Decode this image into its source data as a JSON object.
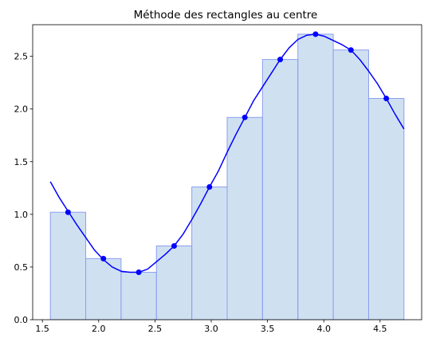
{
  "chart_data": {
    "type": "bar",
    "title": "Méthode des rectangles au centre",
    "xlabel": "",
    "ylabel": "",
    "xlim": [
      1.4137,
      4.8695
    ],
    "ylim": [
      0.0,
      2.8
    ],
    "x_ticks": [
      "1.5",
      "2.0",
      "2.5",
      "3.0",
      "3.5",
      "4.0",
      "4.5"
    ],
    "y_ticks": [
      "0.0",
      "0.5",
      "1.0",
      "1.5",
      "2.0",
      "2.5"
    ],
    "grid": false,
    "rectangles": {
      "x_start": 1.5708,
      "width": 0.31416,
      "heights": [
        1.02,
        0.58,
        0.45,
        0.7,
        1.26,
        1.92,
        2.47,
        2.71,
        2.56,
        2.1
      ],
      "fill_color": "#a8c8e6",
      "edge_color": "#8c9ef0"
    },
    "curve": {
      "x": [
        1.5708,
        1.6493,
        1.7279,
        1.8064,
        1.885,
        1.9635,
        2.042,
        2.1206,
        2.1991,
        2.2777,
        2.3562,
        2.4347,
        2.5133,
        2.5918,
        2.6704,
        2.7489,
        2.8274,
        2.906,
        2.9845,
        3.0631,
        3.1416,
        3.2201,
        3.2987,
        3.3772,
        3.4558,
        3.5343,
        3.6128,
        3.6914,
        3.7699,
        3.8485,
        3.927,
        4.0055,
        4.0841,
        4.1626,
        4.2412,
        4.3197,
        4.3982,
        4.4768,
        4.5553,
        4.6339,
        4.7124
      ],
      "y": [
        1.31,
        1.16,
        1.03,
        0.9,
        0.78,
        0.66,
        0.57,
        0.5,
        0.46,
        0.45,
        0.45,
        0.48,
        0.55,
        0.62,
        0.7,
        0.81,
        0.95,
        1.1,
        1.26,
        1.41,
        1.59,
        1.76,
        1.92,
        2.08,
        2.21,
        2.34,
        2.47,
        2.58,
        2.66,
        2.7,
        2.71,
        2.69,
        2.65,
        2.61,
        2.56,
        2.47,
        2.36,
        2.24,
        2.1,
        1.95,
        1.81
      ],
      "color": "#0000ff"
    },
    "points": {
      "x": [
        1.7279,
        2.042,
        2.3562,
        2.6704,
        2.9845,
        3.2987,
        3.6128,
        3.927,
        4.2412,
        4.5553
      ],
      "y": [
        1.02,
        0.58,
        0.45,
        0.7,
        1.26,
        1.92,
        2.47,
        2.71,
        2.56,
        2.1
      ],
      "color": "#0000ff"
    }
  }
}
